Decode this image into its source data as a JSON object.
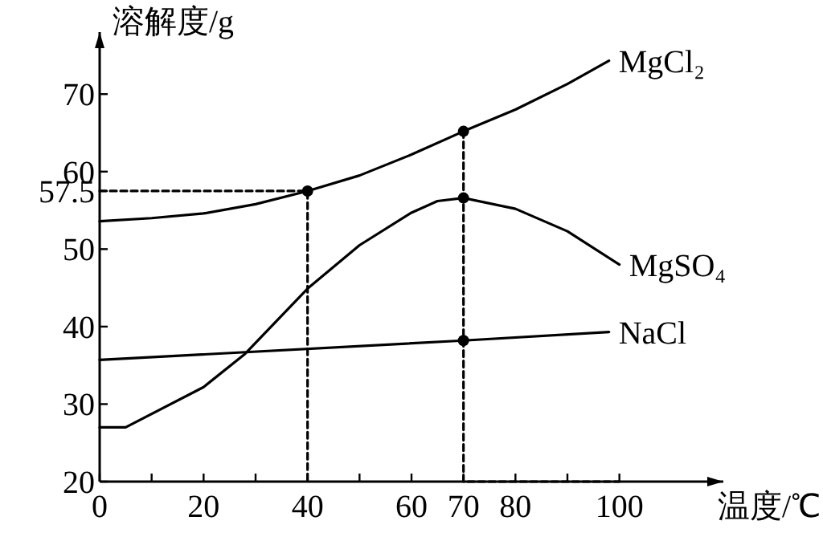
{
  "chart_data": {
    "type": "line",
    "xlabel": "温度/℃",
    "ylabel": "溶解度/g",
    "xlim": [
      0,
      120
    ],
    "ylim": [
      20,
      78
    ],
    "xticks": [
      0,
      {
        "value": 10,
        "label": null
      },
      20,
      {
        "value": 30,
        "label": null
      },
      40,
      {
        "value": 50,
        "label": null
      },
      60,
      70,
      80,
      {
        "value": 90,
        "label": null
      },
      100
    ],
    "yticks": [
      20,
      30,
      40,
      50,
      57.5,
      60,
      70
    ],
    "marker": "none",
    "line_style": "solid",
    "series": [
      {
        "name": "MgCl₂",
        "color": "#000000",
        "x": [
          0,
          10,
          20,
          30,
          40,
          50,
          60,
          70,
          80,
          90,
          98
        ],
        "values": [
          53.6,
          54,
          54.6,
          55.8,
          57.5,
          59.5,
          62.2,
          65.2,
          68,
          71.3,
          74.3
        ]
      },
      {
        "name": "MgSO₄",
        "color": "#000000",
        "x": [
          0,
          5,
          20,
          28,
          40,
          50,
          60,
          65,
          70,
          80,
          90,
          100
        ],
        "values": [
          27,
          27,
          32.2,
          36.5,
          44.9,
          50.5,
          54.7,
          56.2,
          56.6,
          55.2,
          52.3,
          48
        ]
      },
      {
        "name": "NaCl",
        "color": "#000000",
        "x": [
          0,
          70,
          98
        ],
        "values": [
          35.7,
          38.2,
          39.3
        ]
      },
      {
        "type": "scatter",
        "color": "#000000",
        "marker": "circle",
        "x": [
          40,
          70,
          70,
          70
        ],
        "values": [
          57.5,
          65.2,
          56.6,
          38.2
        ]
      },
      {
        "type": "line",
        "color": "#000000",
        "line_style": "dotted",
        "x": [
          0,
          40,
          40
        ],
        "values": [
          57.5,
          57.5,
          20
        ]
      },
      {
        "type": "line",
        "color": "#000000",
        "line_style": "dotted",
        "x": [
          70,
          70,
          100
        ],
        "values": [
          65.2,
          20,
          20
        ]
      }
    ]
  }
}
